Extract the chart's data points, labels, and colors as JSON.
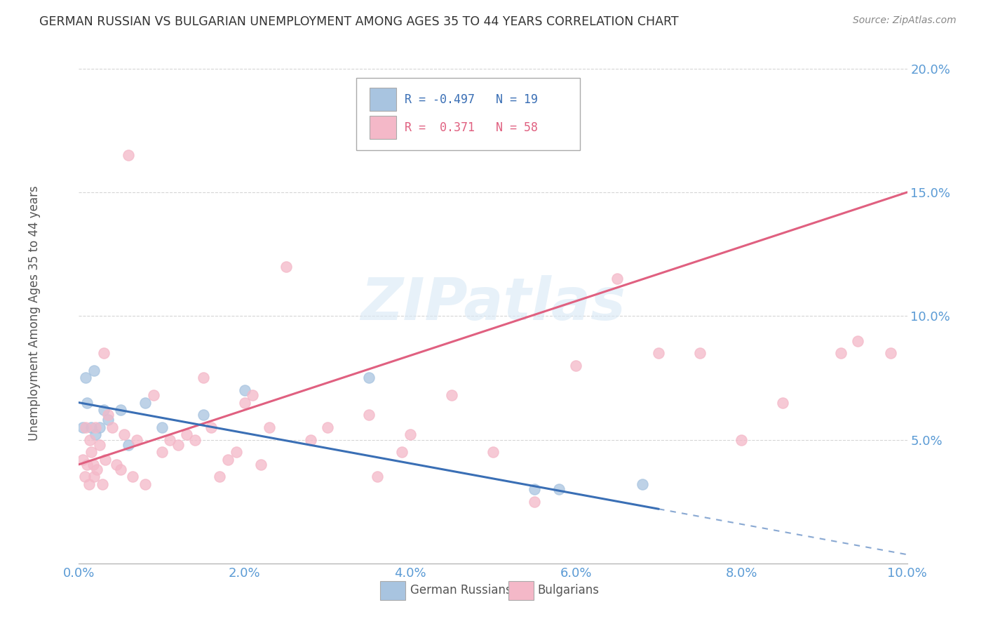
{
  "title": "GERMAN RUSSIAN VS BULGARIAN UNEMPLOYMENT AMONG AGES 35 TO 44 YEARS CORRELATION CHART",
  "source": "Source: ZipAtlas.com",
  "ylabel": "Unemployment Among Ages 35 to 44 years",
  "xlim": [
    0.0,
    10.0
  ],
  "ylim": [
    0.0,
    21.0
  ],
  "xticks": [
    0.0,
    2.0,
    4.0,
    6.0,
    8.0,
    10.0
  ],
  "xtick_labels": [
    "0.0%",
    "2.0%",
    "4.0%",
    "6.0%",
    "8.0%",
    "10.0%"
  ],
  "yticks": [
    5.0,
    10.0,
    15.0,
    20.0
  ],
  "ytick_labels": [
    "5.0%",
    "10.0%",
    "15.0%",
    "20.0%"
  ],
  "german_russian_color": "#a8c4e0",
  "bulgarian_color": "#f4b8c8",
  "german_russian_line_color": "#3a6fb5",
  "bulgarian_line_color": "#e06080",
  "tick_color": "#5b9bd5",
  "R_german": -0.497,
  "N_german": 19,
  "R_bulgarian": 0.371,
  "N_bulgarian": 58,
  "watermark": "ZIPatlas",
  "background_color": "#ffffff",
  "gr_line_x0": 0.0,
  "gr_line_y0": 6.5,
  "gr_line_x1": 7.0,
  "gr_line_y1": 2.2,
  "bg_line_x0": 0.0,
  "bg_line_y0": 4.0,
  "bg_line_x1": 10.0,
  "bg_line_y1": 15.0,
  "german_russian_x": [
    0.05,
    0.08,
    0.1,
    0.15,
    0.18,
    0.2,
    0.25,
    0.3,
    0.35,
    0.5,
    0.6,
    0.8,
    1.0,
    1.5,
    2.0,
    3.5,
    5.5,
    5.8,
    6.8
  ],
  "german_russian_y": [
    5.5,
    7.5,
    6.5,
    5.5,
    7.8,
    5.2,
    5.5,
    6.2,
    5.8,
    6.2,
    4.8,
    6.5,
    5.5,
    6.0,
    7.0,
    7.5,
    3.0,
    3.0,
    3.2
  ],
  "bulgarian_x": [
    0.05,
    0.07,
    0.08,
    0.1,
    0.12,
    0.13,
    0.15,
    0.17,
    0.18,
    0.2,
    0.22,
    0.25,
    0.28,
    0.3,
    0.32,
    0.35,
    0.4,
    0.45,
    0.5,
    0.55,
    0.6,
    0.65,
    0.7,
    0.8,
    0.9,
    1.0,
    1.1,
    1.2,
    1.3,
    1.4,
    1.5,
    1.6,
    1.7,
    1.8,
    1.9,
    2.0,
    2.1,
    2.2,
    2.3,
    2.5,
    2.8,
    3.0,
    3.5,
    3.6,
    3.9,
    4.0,
    4.5,
    5.0,
    5.5,
    6.0,
    6.5,
    7.0,
    7.5,
    8.0,
    8.5,
    9.2,
    9.4,
    9.8
  ],
  "bulgarian_y": [
    4.2,
    3.5,
    5.5,
    4.0,
    3.2,
    5.0,
    4.5,
    4.0,
    3.5,
    5.5,
    3.8,
    4.8,
    3.2,
    8.5,
    4.2,
    6.0,
    5.5,
    4.0,
    3.8,
    5.2,
    16.5,
    3.5,
    5.0,
    3.2,
    6.8,
    4.5,
    5.0,
    4.8,
    5.2,
    5.0,
    7.5,
    5.5,
    3.5,
    4.2,
    4.5,
    6.5,
    6.8,
    4.0,
    5.5,
    12.0,
    5.0,
    5.5,
    6.0,
    3.5,
    4.5,
    5.2,
    6.8,
    4.5,
    2.5,
    8.0,
    11.5,
    8.5,
    8.5,
    5.0,
    6.5,
    8.5,
    9.0,
    8.5
  ]
}
